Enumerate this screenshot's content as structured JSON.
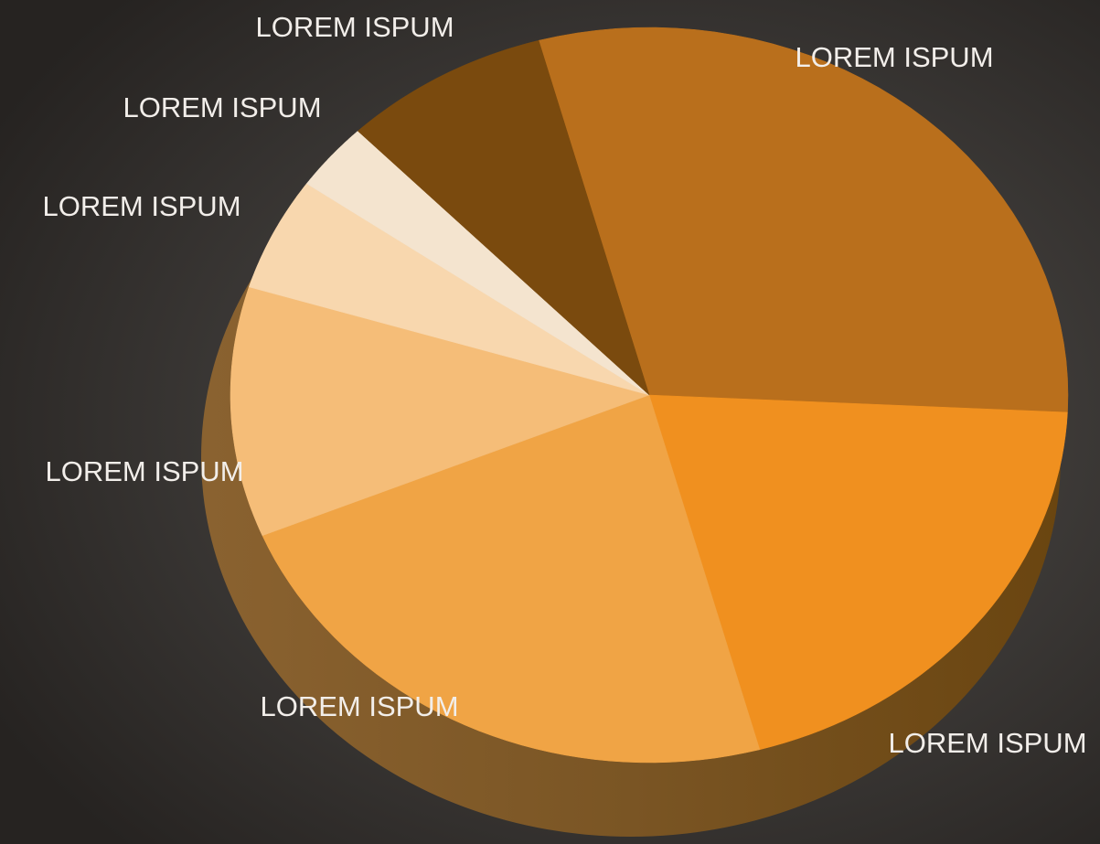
{
  "chart_data": {
    "type": "pie",
    "categories": [
      "LOREM ISPUM",
      "LOREM ISPUM",
      "LOREM ISPUM",
      "LOREM ISPUM",
      "LOREM ISPUM",
      "LOREM ISPUM",
      "LOREM ISPUM"
    ],
    "values": [
      30,
      20,
      23,
      11,
      5,
      3,
      8
    ],
    "colors": [
      "#b96f1c",
      "#f0901f",
      "#f0a445",
      "#f5bd78",
      "#f8d7ae",
      "#f4e4cf",
      "#7a4a0e"
    ]
  }
}
